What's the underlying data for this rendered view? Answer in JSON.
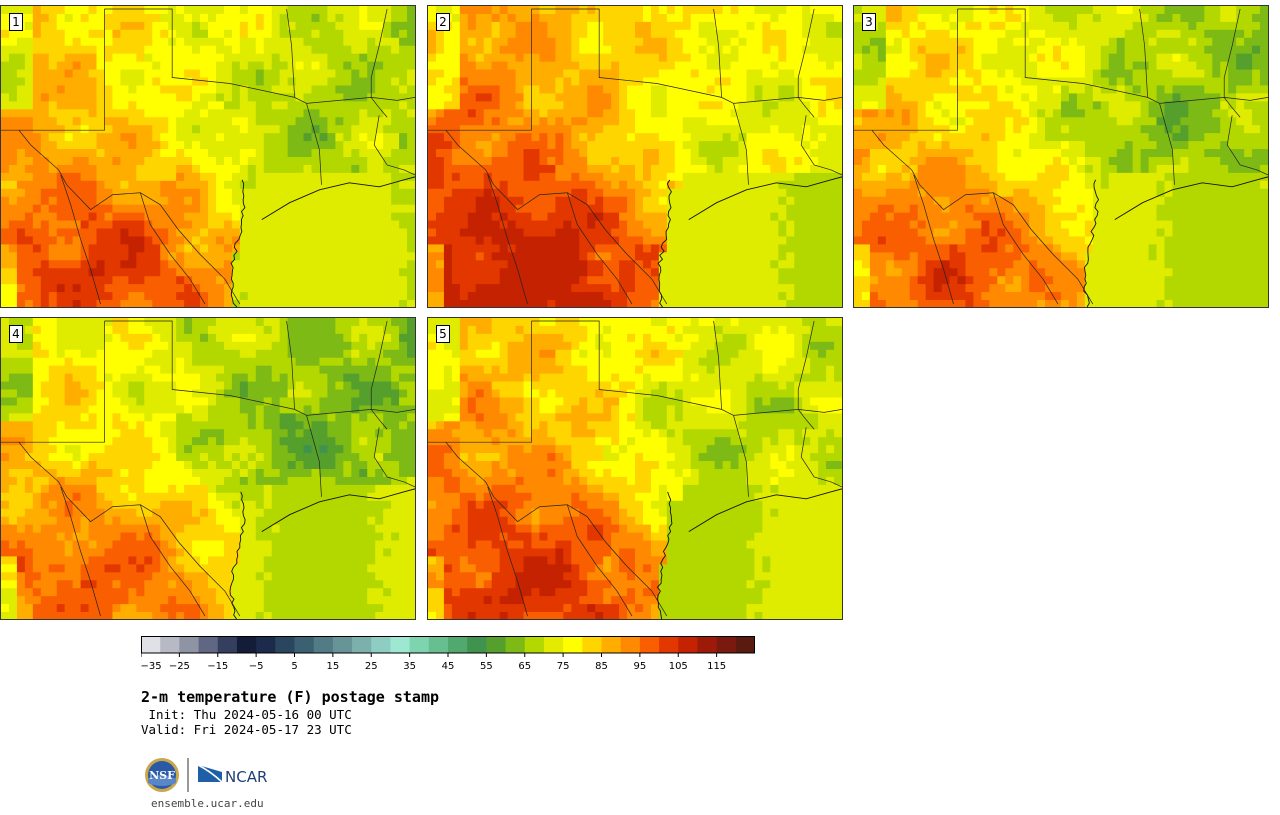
{
  "panels": [
    {
      "label": "1",
      "hot": 0.0
    },
    {
      "label": "2",
      "hot": 0.15
    },
    {
      "label": "3",
      "hot": -0.05
    },
    {
      "label": "4",
      "hot": -0.1
    },
    {
      "label": "5",
      "hot": 0.05
    }
  ],
  "colorbar": {
    "colors": [
      "#dfe1e6",
      "#b7bac5",
      "#8f94a4",
      "#5f6782",
      "#343f5f",
      "#141d38",
      "#1c2b4b",
      "#2a465f",
      "#3b6072",
      "#517b85",
      "#679496",
      "#7cb0ac",
      "#8ecdc1",
      "#9ee8d2",
      "#7fd4b0",
      "#67be8f",
      "#52a96f",
      "#3f934f",
      "#559f2c",
      "#7dba16",
      "#b3d800",
      "#e3ec00",
      "#ffff00",
      "#ffd500",
      "#ffae00",
      "#ff8900",
      "#f95f00",
      "#e23800",
      "#c42200",
      "#9e1a08",
      "#7a1a0e",
      "#5a1a10"
    ],
    "ticks": [
      "−35",
      "−25",
      "−15",
      "−5",
      "5",
      "15",
      "25",
      "35",
      "45",
      "55",
      "65",
      "75",
      "85",
      "95",
      "105",
      "115"
    ]
  },
  "title": "2-m temperature (F) postage stamp",
  "init": " Init: Thu 2024-05-16 00 UTC",
  "valid": "Valid: Fri 2024-05-17 23 UTC",
  "logos": {
    "nsf": "NSF",
    "ncar": "NCAR"
  },
  "website": "ensemble.ucar.edu"
}
